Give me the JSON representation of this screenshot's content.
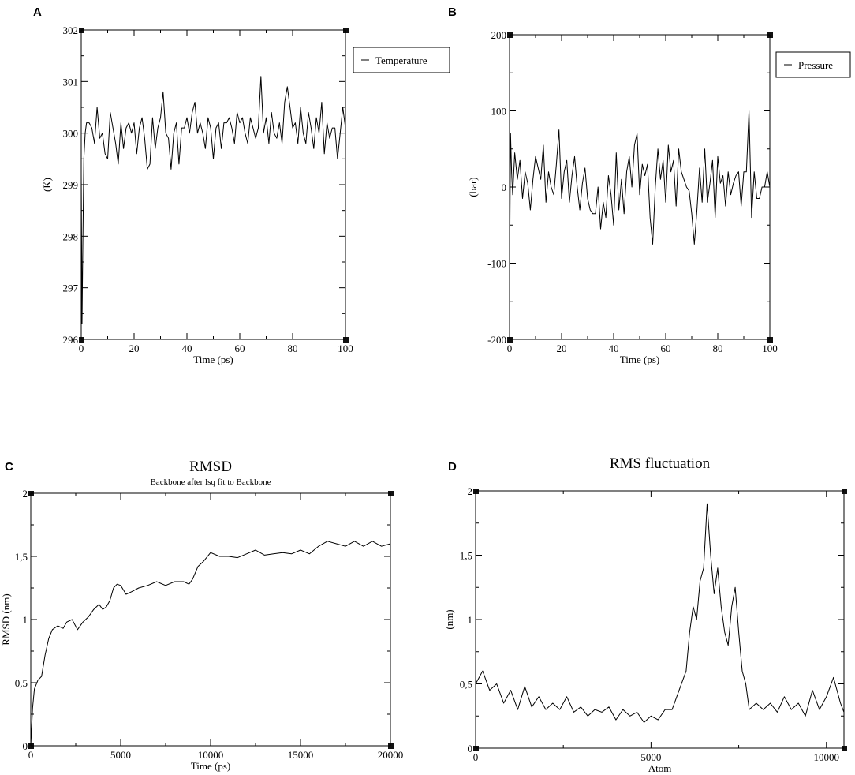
{
  "chart_data": [
    {
      "panel": "A",
      "type": "line",
      "title": "",
      "subtitle": "",
      "xlabel": "Time (ps)",
      "ylabel": "(K)",
      "xlim": [
        0,
        100
      ],
      "ylim": [
        296,
        302
      ],
      "xticks": [
        0,
        20,
        40,
        60,
        80,
        100
      ],
      "yticks": [
        296,
        297,
        298,
        299,
        300,
        301,
        302
      ],
      "xtick_labels": [
        "0",
        "20",
        "40",
        "60",
        "80",
        "100"
      ],
      "ytick_labels": [
        "296",
        "297",
        "298",
        "299",
        "300",
        "301",
        "302"
      ],
      "legend": "outside-right",
      "series": [
        {
          "name": "Temperature",
          "x": [
            0,
            0.3,
            0.6,
            1,
            1.5,
            2,
            3,
            4,
            5,
            6,
            7,
            8,
            9,
            10,
            11,
            12,
            13,
            14,
            15,
            16,
            17,
            18,
            19,
            20,
            21,
            22,
            23,
            24,
            25,
            26,
            27,
            28,
            29,
            30,
            31,
            32,
            33,
            34,
            35,
            36,
            37,
            38,
            39,
            40,
            41,
            42,
            43,
            44,
            45,
            46,
            47,
            48,
            49,
            50,
            51,
            52,
            53,
            54,
            55,
            56,
            57,
            58,
            59,
            60,
            61,
            62,
            63,
            64,
            65,
            66,
            67,
            68,
            69,
            70,
            71,
            72,
            73,
            74,
            75,
            76,
            77,
            78,
            79,
            80,
            81,
            82,
            83,
            84,
            85,
            86,
            87,
            88,
            89,
            90,
            91,
            92,
            93,
            94,
            95,
            96,
            97,
            98,
            99,
            100
          ],
          "values": [
            299.2,
            296.3,
            297.8,
            299.5,
            300.0,
            300.2,
            300.2,
            300.1,
            299.8,
            300.5,
            299.9,
            300.0,
            299.6,
            299.5,
            300.4,
            300.1,
            299.8,
            299.4,
            300.2,
            299.7,
            300.1,
            300.2,
            300.0,
            300.2,
            299.6,
            300.1,
            300.3,
            299.9,
            299.3,
            299.4,
            300.3,
            299.7,
            300.1,
            300.3,
            300.8,
            300.0,
            299.9,
            299.3,
            300.0,
            300.2,
            299.4,
            300.1,
            300.1,
            300.3,
            300.0,
            300.4,
            300.6,
            300.0,
            300.2,
            300.0,
            299.7,
            300.3,
            300.1,
            299.5,
            300.1,
            300.2,
            299.7,
            300.2,
            300.2,
            300.3,
            300.1,
            299.8,
            300.4,
            300.2,
            300.3,
            300.0,
            299.8,
            300.3,
            300.1,
            299.9,
            300.1,
            301.1,
            300.0,
            300.3,
            299.8,
            300.4,
            300.0,
            299.9,
            300.2,
            299.8,
            300.6,
            300.9,
            300.5,
            300.1,
            300.2,
            299.8,
            300.5,
            300.0,
            299.8,
            300.4,
            300.1,
            299.7,
            300.3,
            300.0,
            300.6,
            299.6,
            300.2,
            299.9,
            300.1,
            300.1,
            299.5,
            300.0,
            300.5,
            300.1
          ]
        }
      ]
    },
    {
      "panel": "B",
      "type": "line",
      "title": "",
      "subtitle": "",
      "xlabel": "Time (ps)",
      "ylabel": "(bar)",
      "xlim": [
        0,
        100
      ],
      "ylim": [
        -200,
        200
      ],
      "xticks": [
        0,
        20,
        40,
        60,
        80,
        100
      ],
      "yticks": [
        -200,
        -100,
        0,
        100,
        200
      ],
      "xtick_labels": [
        "0",
        "20",
        "40",
        "60",
        "80",
        "100"
      ],
      "ytick_labels": [
        "-200",
        "-100",
        "0",
        "100",
        "200"
      ],
      "legend": "outside-right",
      "series": [
        {
          "name": "Pressure",
          "x": [
            0,
            0.4,
            0.8,
            1.2,
            2,
            3,
            4,
            5,
            6,
            7,
            8,
            9,
            10,
            11,
            12,
            13,
            14,
            15,
            16,
            17,
            18,
            19,
            20,
            21,
            22,
            23,
            24,
            25,
            26,
            27,
            28,
            29,
            30,
            31,
            32,
            33,
            34,
            35,
            36,
            37,
            38,
            39,
            40,
            41,
            42,
            43,
            44,
            45,
            46,
            47,
            48,
            49,
            50,
            51,
            52,
            53,
            54,
            55,
            56,
            57,
            58,
            59,
            60,
            61,
            62,
            63,
            64,
            65,
            66,
            67,
            68,
            69,
            70,
            71,
            72,
            73,
            74,
            75,
            76,
            77,
            78,
            79,
            80,
            81,
            82,
            83,
            84,
            85,
            86,
            87,
            88,
            89,
            90,
            91,
            92,
            93,
            94,
            95,
            96,
            97,
            98,
            99,
            100
          ],
          "values": [
            -125,
            70,
            20,
            -10,
            45,
            10,
            35,
            -15,
            20,
            5,
            -30,
            10,
            40,
            25,
            10,
            55,
            -20,
            20,
            0,
            -10,
            30,
            75,
            -15,
            20,
            35,
            -20,
            15,
            40,
            0,
            -30,
            5,
            25,
            -15,
            -30,
            -35,
            -35,
            0,
            -55,
            -20,
            -40,
            15,
            -10,
            -50,
            45,
            -30,
            10,
            -35,
            20,
            40,
            0,
            55,
            70,
            -10,
            30,
            15,
            30,
            -40,
            -75,
            0,
            50,
            10,
            35,
            -20,
            55,
            20,
            35,
            -25,
            50,
            20,
            10,
            0,
            -5,
            -35,
            -75,
            -30,
            25,
            -20,
            50,
            -20,
            5,
            35,
            -40,
            40,
            5,
            15,
            -25,
            20,
            -10,
            5,
            15,
            20,
            -25,
            20,
            20,
            100,
            -40,
            20,
            -15,
            -15,
            0,
            0,
            20,
            0
          ]
        }
      ]
    },
    {
      "panel": "C",
      "type": "line",
      "title": "RMSD",
      "subtitle": "Backbone after lsq fit to Backbone",
      "xlabel": "Time (ps)",
      "ylabel": "RMSD (nm)",
      "xlim": [
        0,
        20000
      ],
      "ylim": [
        0,
        2
      ],
      "xticks": [
        0,
        5000,
        10000,
        15000,
        20000
      ],
      "yticks": [
        0,
        0.5,
        1,
        1.5,
        2
      ],
      "xtick_labels": [
        "0",
        "5000",
        "10000",
        "15000",
        "20000"
      ],
      "ytick_labels": [
        "0",
        "0,5",
        "1",
        "1,5",
        "2"
      ],
      "legend": "none",
      "series": [
        {
          "x": [
            0,
            100,
            200,
            400,
            600,
            800,
            1000,
            1200,
            1500,
            1800,
            2000,
            2300,
            2600,
            2900,
            3200,
            3500,
            3800,
            4000,
            4200,
            4400,
            4600,
            4800,
            5000,
            5300,
            5600,
            6000,
            6500,
            7000,
            7500,
            8000,
            8500,
            8800,
            9000,
            9300,
            9600,
            10000,
            10500,
            11000,
            11500,
            12000,
            12500,
            13000,
            13500,
            14000,
            14500,
            15000,
            15500,
            16000,
            16500,
            17000,
            17500,
            18000,
            18500,
            19000,
            19500,
            20000
          ],
          "values": [
            0.0,
            0.3,
            0.45,
            0.52,
            0.55,
            0.72,
            0.85,
            0.92,
            0.95,
            0.93,
            0.98,
            1.0,
            0.92,
            0.98,
            1.02,
            1.08,
            1.12,
            1.08,
            1.1,
            1.15,
            1.25,
            1.28,
            1.27,
            1.2,
            1.22,
            1.25,
            1.27,
            1.3,
            1.27,
            1.3,
            1.3,
            1.28,
            1.32,
            1.42,
            1.46,
            1.53,
            1.5,
            1.5,
            1.49,
            1.52,
            1.55,
            1.51,
            1.52,
            1.53,
            1.52,
            1.55,
            1.52,
            1.58,
            1.62,
            1.6,
            1.58,
            1.62,
            1.58,
            1.62,
            1.58,
            1.6
          ]
        }
      ]
    },
    {
      "panel": "D",
      "type": "line",
      "title": "RMS fluctuation",
      "subtitle": "",
      "xlabel": "Atom",
      "ylabel": "(nm)",
      "xlim": [
        0,
        10500
      ],
      "ylim": [
        0,
        2
      ],
      "xticks": [
        0,
        5000,
        10000
      ],
      "yticks": [
        0,
        0.5,
        1,
        1.5,
        2
      ],
      "xtick_labels": [
        "0",
        "5000",
        "10000"
      ],
      "ytick_labels": [
        "0",
        "0,5",
        "1",
        "1,5",
        "2"
      ],
      "legend": "none",
      "series": [
        {
          "x": [
            0,
            200,
            400,
            600,
            800,
            1000,
            1200,
            1400,
            1600,
            1800,
            2000,
            2200,
            2400,
            2600,
            2800,
            3000,
            3200,
            3400,
            3600,
            3800,
            4000,
            4200,
            4400,
            4600,
            4800,
            5000,
            5200,
            5400,
            5600,
            5800,
            6000,
            6100,
            6200,
            6300,
            6400,
            6500,
            6600,
            6700,
            6800,
            6900,
            7000,
            7100,
            7200,
            7300,
            7400,
            7500,
            7600,
            7700,
            7800,
            8000,
            8200,
            8400,
            8600,
            8800,
            9000,
            9200,
            9400,
            9600,
            9800,
            10000,
            10200,
            10400,
            10500
          ],
          "values": [
            0.5,
            0.6,
            0.45,
            0.5,
            0.35,
            0.45,
            0.3,
            0.48,
            0.32,
            0.4,
            0.3,
            0.35,
            0.3,
            0.4,
            0.28,
            0.32,
            0.25,
            0.3,
            0.28,
            0.32,
            0.22,
            0.3,
            0.25,
            0.28,
            0.2,
            0.25,
            0.22,
            0.3,
            0.3,
            0.45,
            0.6,
            0.9,
            1.1,
            1.0,
            1.3,
            1.4,
            1.9,
            1.5,
            1.2,
            1.4,
            1.1,
            0.9,
            0.8,
            1.1,
            1.25,
            0.9,
            0.6,
            0.5,
            0.3,
            0.35,
            0.3,
            0.35,
            0.28,
            0.4,
            0.3,
            0.35,
            0.25,
            0.45,
            0.3,
            0.4,
            0.55,
            0.35,
            0.28
          ]
        }
      ]
    }
  ]
}
